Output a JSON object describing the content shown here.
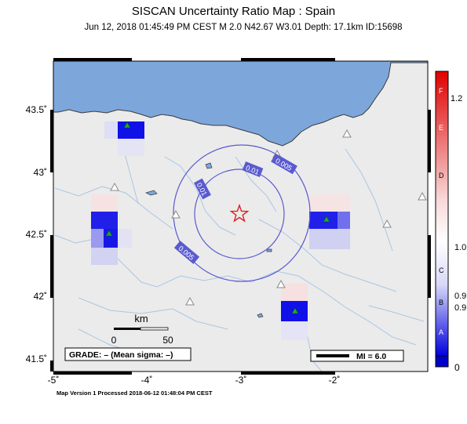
{
  "title": "SISCAN Uncertainty Ratio Map : Spain",
  "subtitle": "Jun 12, 2018 01:45:49 PM CEST   M 2.0   N42.67 W3.01   Depth: 17.1km   ID:15698",
  "footer": "Map Version 1 Processed 2018-06-12 01:48:04 PM CEST",
  "axes": {
    "lat_labels": [
      "43.5˚",
      "43˚",
      "42.5˚",
      "42˚",
      "41.5˚"
    ],
    "lon_labels": [
      "-5˚",
      "-4˚",
      "-3˚",
      "-2˚"
    ]
  },
  "contours": {
    "inner_label": "0.01",
    "outer_label": "0.005"
  },
  "scale_bar": {
    "unit": "km",
    "start": "0",
    "end": "50"
  },
  "grade_box": "GRADE: – (Mean sigma: –)",
  "mi_legend": "MI = 6.0",
  "colorbar": {
    "top_ticks": [
      "1.2"
    ],
    "letters": [
      "F",
      "E",
      "D",
      "C",
      "B",
      "A"
    ],
    "values": [
      "1.0",
      "0.9",
      "0.9"
    ],
    "bottom": "0",
    "colors": {
      "high": "#e00000",
      "mid": "#ffffff",
      "low": "#0000e0"
    }
  },
  "colors": {
    "sea": "#7da7db",
    "land": "#ebebeb",
    "rivers": "#a9c6e4",
    "contour": "#5a5ad0",
    "epicenter": "#e02020"
  },
  "icons": [
    "epicenter-star-icon",
    "station-triangle-icon"
  ]
}
